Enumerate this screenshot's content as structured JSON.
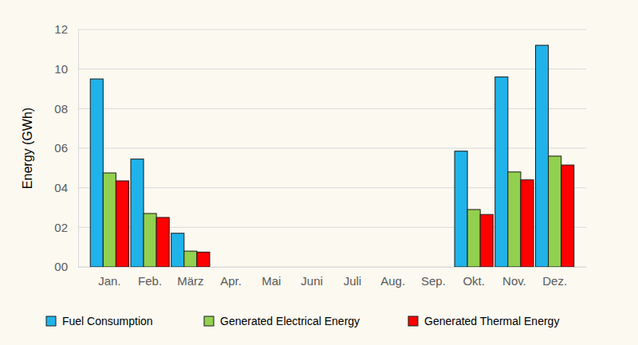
{
  "chart_data": {
    "type": "bar",
    "ylabel": "Energy (GWh)",
    "categories": [
      "Jan.",
      "Feb.",
      "März",
      "Apr.",
      "Mai",
      "Juni",
      "Juli",
      "Aug.",
      "Sep.",
      "Okt.",
      "Nov.",
      "Dez."
    ],
    "series": [
      {
        "name": "Fuel Consumption",
        "color": "#1fb3ea",
        "values": [
          9.5,
          5.45,
          1.7,
          0,
          0,
          0,
          0,
          0,
          0,
          5.85,
          9.6,
          11.2
        ]
      },
      {
        "name": "Generated Electrical Energy",
        "color": "#92d050",
        "values": [
          4.75,
          2.7,
          0.8,
          0,
          0,
          0,
          0,
          0,
          0,
          2.9,
          4.8,
          5.6
        ]
      },
      {
        "name": "Generated Thermal Energy",
        "color": "#ff0000",
        "values": [
          4.35,
          2.5,
          0.75,
          0,
          0,
          0,
          0,
          0,
          0,
          2.65,
          4.4,
          5.15
        ]
      }
    ],
    "ylim": [
      0,
      12
    ],
    "yticks": [
      {
        "value": 0,
        "label": "00"
      },
      {
        "value": 2,
        "label": "02"
      },
      {
        "value": 4,
        "label": "04"
      },
      {
        "value": 6,
        "label": "06"
      },
      {
        "value": 8,
        "label": "08"
      },
      10,
      12
    ],
    "grid": true,
    "legend": "bottom"
  }
}
